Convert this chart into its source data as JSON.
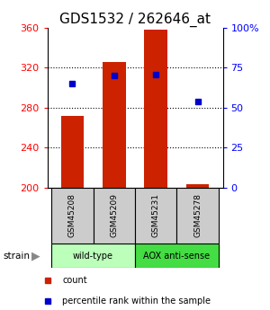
{
  "title": "GDS1532 / 262646_at",
  "samples": [
    "GSM45208",
    "GSM45209",
    "GSM45231",
    "GSM45278"
  ],
  "counts": [
    272,
    326,
    358,
    203
  ],
  "percentiles": [
    65,
    70,
    71,
    54
  ],
  "ylim_left": [
    200,
    360
  ],
  "ylim_right": [
    0,
    100
  ],
  "yticks_left": [
    200,
    240,
    280,
    320,
    360
  ],
  "yticks_right": [
    0,
    25,
    50,
    75,
    100
  ],
  "ytick_labels_right": [
    "0",
    "25",
    "50",
    "75",
    "100%"
  ],
  "bar_color": "#cc2200",
  "dot_color": "#0000cc",
  "grid_ticks": [
    240,
    280,
    320
  ],
  "wt_color": "#bbffbb",
  "aox_color": "#44dd44",
  "sample_box_color": "#cccccc",
  "bar_width": 0.55,
  "fig_width": 3.0,
  "fig_height": 3.45,
  "title_fontsize": 11,
  "tick_fontsize": 8,
  "label_fontsize": 7
}
